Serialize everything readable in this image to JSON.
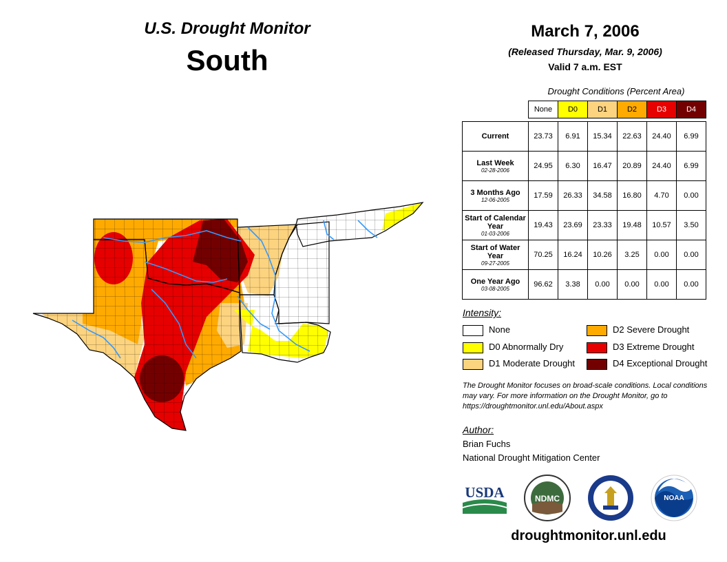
{
  "header": {
    "title": "U.S. Drought Monitor",
    "region": "South",
    "date": "March 7, 2006",
    "released": "(Released Thursday, Mar. 9, 2006)",
    "valid": "Valid 7 a.m. EST"
  },
  "conditions_table": {
    "caption": "Drought Conditions (Percent Area)",
    "columns": [
      "None",
      "D0",
      "D1",
      "D2",
      "D3",
      "D4"
    ],
    "column_colors": [
      "#ffffff",
      "#ffff00",
      "#fcd37f",
      "#ffaa00",
      "#e60000",
      "#730000"
    ],
    "rows": [
      {
        "label": "Current",
        "date": "",
        "values": [
          "23.73",
          "6.91",
          "15.34",
          "22.63",
          "24.40",
          "6.99"
        ]
      },
      {
        "label": "Last Week",
        "date": "02-28-2006",
        "values": [
          "24.95",
          "6.30",
          "16.47",
          "20.89",
          "24.40",
          "6.99"
        ]
      },
      {
        "label": "3 Months Ago",
        "date": "12-06-2005",
        "values": [
          "17.59",
          "26.33",
          "34.58",
          "16.80",
          "4.70",
          "0.00"
        ]
      },
      {
        "label": "Start of Calendar Year",
        "date": "01-03-2006",
        "values": [
          "19.43",
          "23.69",
          "23.33",
          "19.48",
          "10.57",
          "3.50"
        ]
      },
      {
        "label": "Start of Water Year",
        "date": "09-27-2005",
        "values": [
          "70.25",
          "16.24",
          "10.26",
          "3.25",
          "0.00",
          "0.00"
        ]
      },
      {
        "label": "One Year Ago",
        "date": "03-08-2005",
        "values": [
          "96.62",
          "3.38",
          "0.00",
          "0.00",
          "0.00",
          "0.00"
        ]
      }
    ]
  },
  "legend": {
    "title": "Intensity:",
    "items": [
      {
        "label": "None",
        "color": "#ffffff"
      },
      {
        "label": "D0 Abnormally Dry",
        "color": "#ffff00"
      },
      {
        "label": "D1 Moderate Drought",
        "color": "#fcd37f"
      },
      {
        "label": "D2 Severe Drought",
        "color": "#ffaa00"
      },
      {
        "label": "D3 Extreme Drought",
        "color": "#e60000"
      },
      {
        "label": "D4 Exceptional Drought",
        "color": "#730000"
      }
    ]
  },
  "note": "The Drought Monitor focuses on broad-scale conditions. Local conditions may vary. For more information on the Drought Monitor, go to https://droughtmonitor.unl.edu/About.aspx",
  "author": {
    "title": "Author:",
    "name": "Brian Fuchs",
    "org": "National Drought Mitigation Center"
  },
  "logos": {
    "usda": "USDA",
    "ndmc": "NDMC",
    "noaa": "NOAA"
  },
  "website": "droughtmonitor.unl.edu",
  "map_colors": {
    "none": "#ffffff",
    "d0": "#ffff00",
    "d1": "#fcd37f",
    "d2": "#ffaa00",
    "d3": "#e60000",
    "d4": "#730000",
    "river": "#3399ff",
    "border": "#000000"
  }
}
